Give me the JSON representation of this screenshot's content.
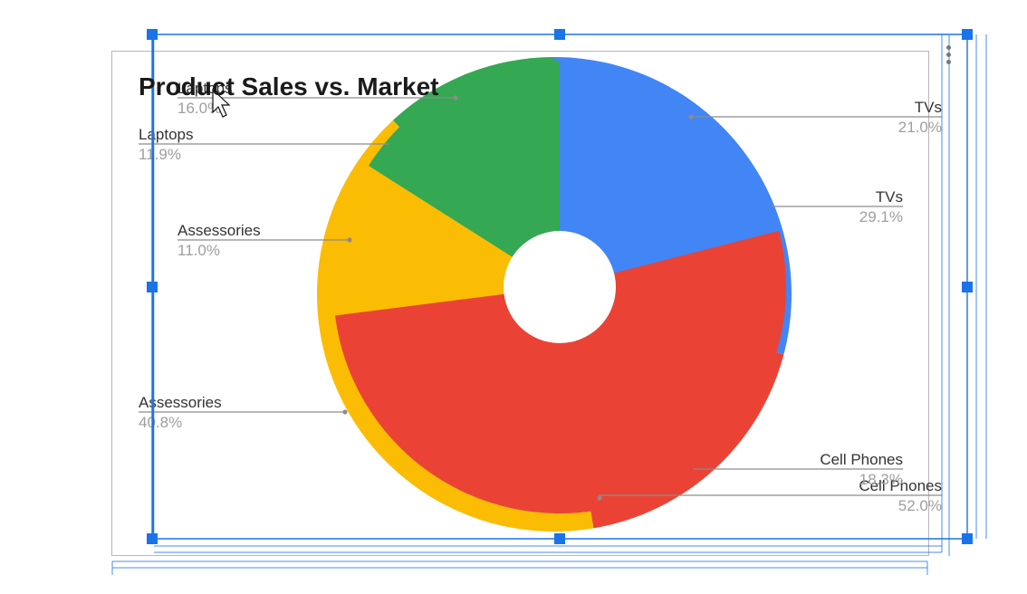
{
  "chart_data": {
    "type": "pie",
    "variant": "overlaid donut (two series)",
    "title": "Product Sales vs. Market",
    "series": [
      {
        "slices": [
          {
            "label": "TVs",
            "percent": "21.0%",
            "value": 21.0,
            "color": "#4285f4"
          },
          {
            "label": "Cell Phones",
            "percent": "52.0%",
            "value": 52.0,
            "color": "#ea4335"
          },
          {
            "label": "Assessories",
            "percent": "11.0%",
            "value": 11.0,
            "color": "#fbbc04"
          },
          {
            "label": "Laptops",
            "percent": "16.0%",
            "value": 16.0,
            "color": "#34a853"
          }
        ]
      },
      {
        "slices": [
          {
            "label": "TVs",
            "percent": "29.1%",
            "value": 29.1,
            "color": "#4285f4"
          },
          {
            "label": "Cell Phones",
            "percent": "18.3%",
            "value": 18.3,
            "color": "#ea4335"
          },
          {
            "label": "Assessories",
            "percent": "40.8%",
            "value": 40.8,
            "color": "#fbbc04"
          },
          {
            "label": "Laptops",
            "percent": "11.9%",
            "value": 11.9,
            "color": "#34a853"
          }
        ]
      }
    ],
    "legend": "none (labels beside slices)"
  },
  "colors": {
    "selection": "#1a73e8",
    "label_text": "#333333",
    "percent_text": "#9e9e9e",
    "leader_line": "#8c8c8c"
  },
  "ui": {
    "menu_icon": "more-vert-icon"
  }
}
